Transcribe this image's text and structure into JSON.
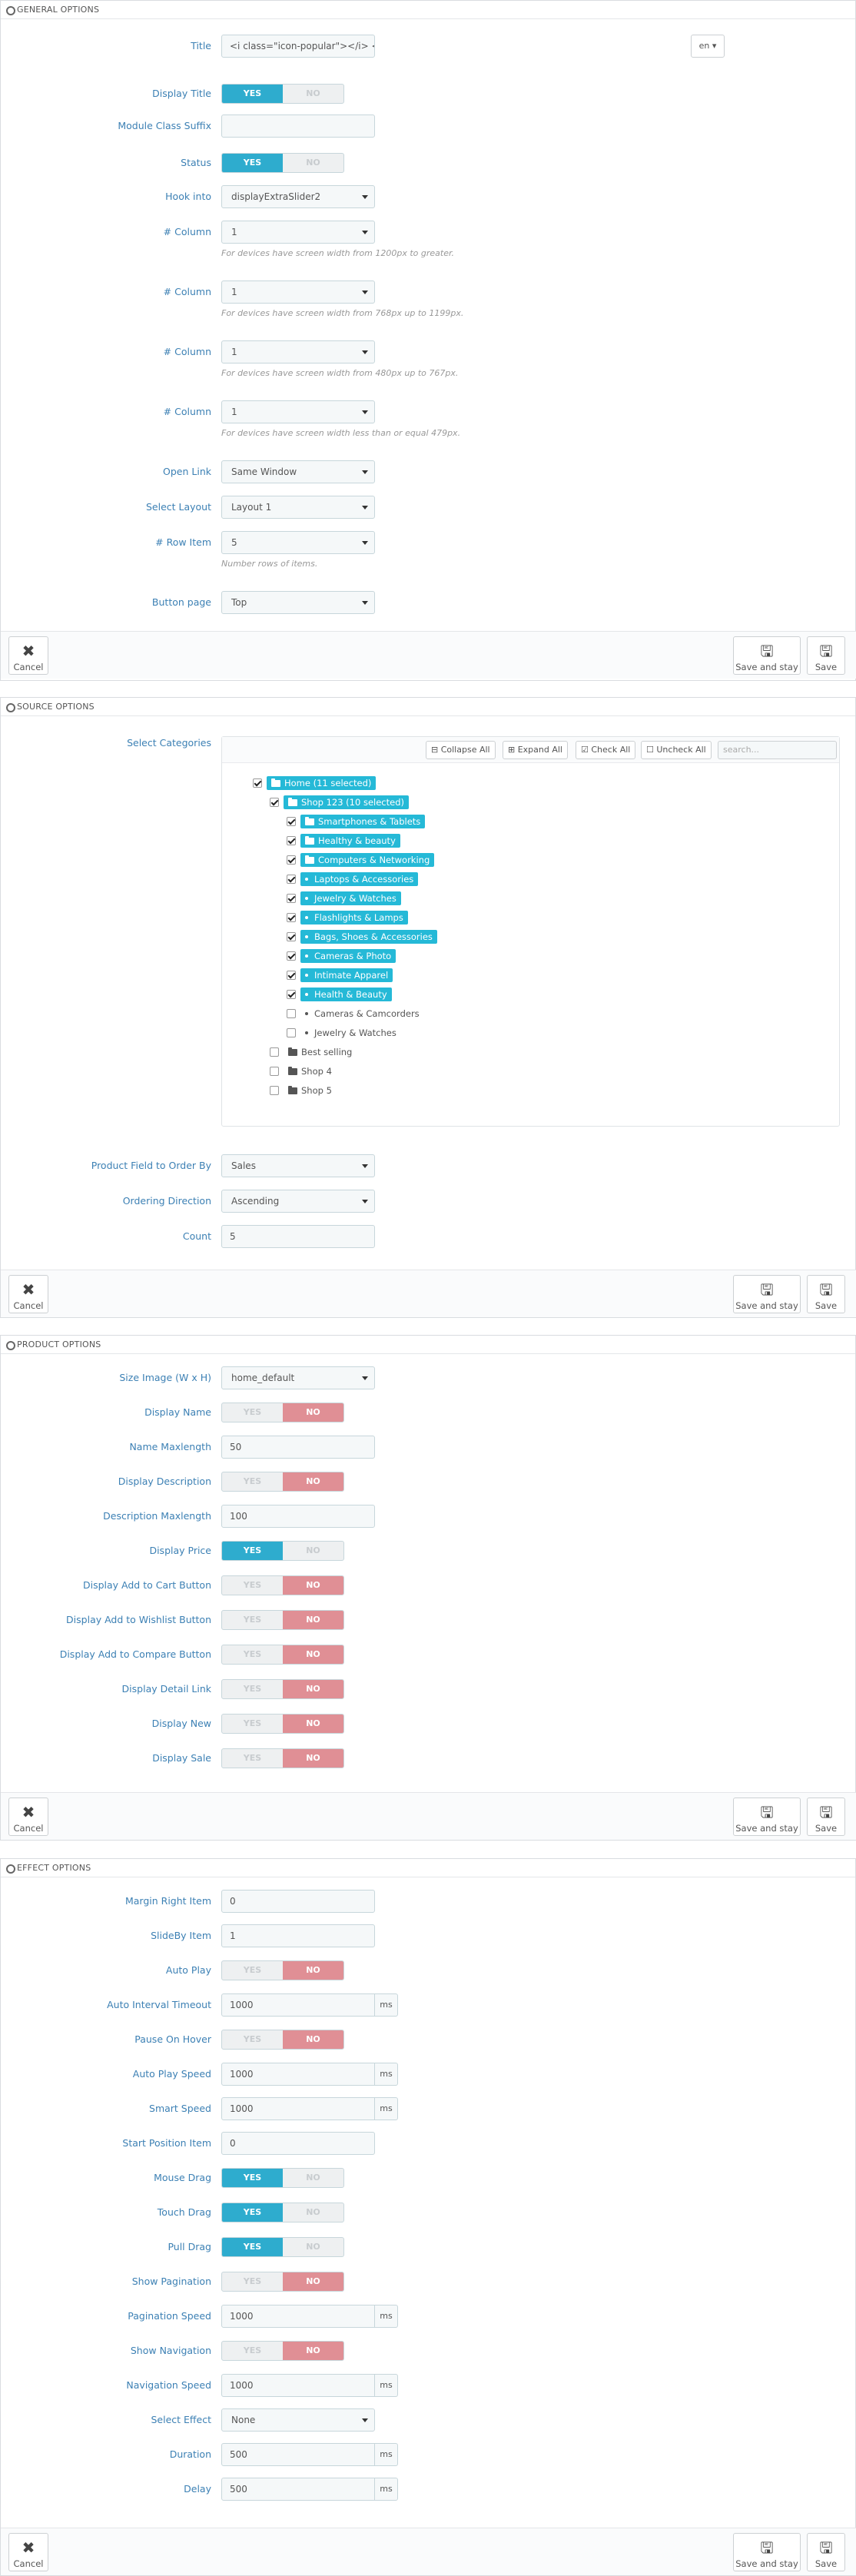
{
  "general": {
    "header": "GENERAL OPTIONS",
    "title_label": "Title",
    "title_value": "<i class=\"icon-popular\"></i> <span",
    "lang": "en",
    "display_title_label": "Display Title",
    "suffix_label": "Module Class Suffix",
    "suffix_value": "",
    "status_label": "Status",
    "hook_label": "Hook into",
    "hook_value": "displayExtraSlider2",
    "col_label": "# Column",
    "col1_value": "1",
    "col1_help": "For devices have screen width from 1200px to greater.",
    "col2_value": "1",
    "col2_help": "For devices have screen width from 768px up to 1199px.",
    "col3_value": "1",
    "col3_help": "For devices have screen width from 480px up to 767px.",
    "col4_value": "1",
    "col4_help": "For devices have screen width less than or equal 479px.",
    "open_link_label": "Open Link",
    "open_link_value": "Same Window",
    "layout_label": "Select Layout",
    "layout_value": "Layout 1",
    "row_label": "# Row Item",
    "row_value": "5",
    "row_help": "Number rows of items.",
    "button_page_label": "Button page",
    "button_page_value": "Top"
  },
  "source": {
    "header": "SOURCE OPTIONS",
    "categories_label": "Select Categories",
    "collapse_all": "Collapse All",
    "expand_all": "Expand All",
    "check_all": "Check All",
    "uncheck_all": "Uncheck All",
    "search_placeholder": "search...",
    "tree": [
      {
        "label": "Home (11 selected)",
        "checked": true,
        "highlight": true,
        "icon": "folder-open-icon"
      },
      {
        "label": "Shop 123 (10 selected)",
        "checked": true,
        "highlight": true,
        "icon": "folder-open-icon"
      },
      {
        "label": "Smartphones & Tablets",
        "checked": true,
        "highlight": true,
        "icon": "folder-icon"
      },
      {
        "label": "Healthy & beauty",
        "checked": true,
        "highlight": true,
        "icon": "folder-icon"
      },
      {
        "label": "Computers & Networking",
        "checked": true,
        "highlight": true,
        "icon": "folder-icon"
      },
      {
        "label": "Laptops & Accessories",
        "checked": true,
        "highlight": true,
        "icon": "bullet-icon"
      },
      {
        "label": "Jewelry & Watches",
        "checked": true,
        "highlight": true,
        "icon": "bullet-icon"
      },
      {
        "label": "Flashlights & Lamps",
        "checked": true,
        "highlight": true,
        "icon": "bullet-icon"
      },
      {
        "label": "Bags, Shoes & Accessories",
        "checked": true,
        "highlight": true,
        "icon": "bullet-icon"
      },
      {
        "label": "Cameras & Photo",
        "checked": true,
        "highlight": true,
        "icon": "bullet-icon"
      },
      {
        "label": "Intimate Apparel",
        "checked": true,
        "highlight": true,
        "icon": "bullet-icon"
      },
      {
        "label": "Health & Beauty",
        "checked": true,
        "highlight": true,
        "icon": "bullet-icon"
      },
      {
        "label": "Cameras & Camcorders",
        "checked": false,
        "highlight": false,
        "icon": "bullet-icon"
      },
      {
        "label": "Jewelry & Watches",
        "checked": false,
        "highlight": false,
        "icon": "bullet-icon"
      },
      {
        "label": "Best selling",
        "checked": false,
        "highlight": false,
        "icon": "folder-icon"
      },
      {
        "label": "Shop 4",
        "checked": false,
        "highlight": false,
        "icon": "folder-icon"
      },
      {
        "label": "Shop 5",
        "checked": false,
        "highlight": false,
        "icon": "folder-icon"
      }
    ],
    "order_by_label": "Product Field to Order By",
    "order_by_value": "Sales",
    "direction_label": "Ordering Direction",
    "direction_value": "Ascending",
    "count_label": "Count",
    "count_value": "5"
  },
  "product": {
    "header": "PRODUCT OPTIONS",
    "size_label": "Size Image (W x H)",
    "size_value": "home_default",
    "display_name_label": "Display Name",
    "name_max_label": "Name Maxlength",
    "name_max_value": "50",
    "display_desc_label": "Display Description",
    "desc_max_label": "Description Maxlength",
    "desc_max_value": "100",
    "display_price_label": "Display Price",
    "cart_label": "Display Add to Cart Button",
    "wishlist_label": "Display Add to Wishlist Button",
    "compare_label": "Display Add to Compare Button",
    "detail_label": "Display Detail Link",
    "new_label": "Display New",
    "sale_label": "Display Sale"
  },
  "effect": {
    "header": "EFFECT OPTIONS",
    "margin_label": "Margin Right Item",
    "margin_value": "0",
    "slideby_label": "SlideBy Item",
    "slideby_value": "1",
    "autoplay_label": "Auto Play",
    "interval_label": "Auto Interval Timeout",
    "interval_value": "1000",
    "pause_label": "Pause On Hover",
    "autoplay_speed_label": "Auto Play Speed",
    "autoplay_speed_value": "1000",
    "smart_label": "Smart Speed",
    "smart_value": "1000",
    "start_label": "Start Position Item",
    "start_value": "0",
    "mouse_label": "Mouse Drag",
    "touch_label": "Touch Drag",
    "pull_label": "Pull Drag",
    "pagination_label": "Show Pagination",
    "pag_speed_label": "Pagination Speed",
    "pag_speed_value": "1000",
    "navigation_label": "Show Navigation",
    "nav_speed_label": "Navigation Speed",
    "nav_speed_value": "1000",
    "effect_label": "Select Effect",
    "effect_value": "None",
    "duration_label": "Duration",
    "duration_value": "500",
    "delay_label": "Delay",
    "delay_value": "500"
  },
  "common": {
    "yes": "YES",
    "no": "NO",
    "ms": "ms",
    "cancel": "Cancel",
    "save_and_stay": "Save and stay",
    "save": "Save"
  }
}
